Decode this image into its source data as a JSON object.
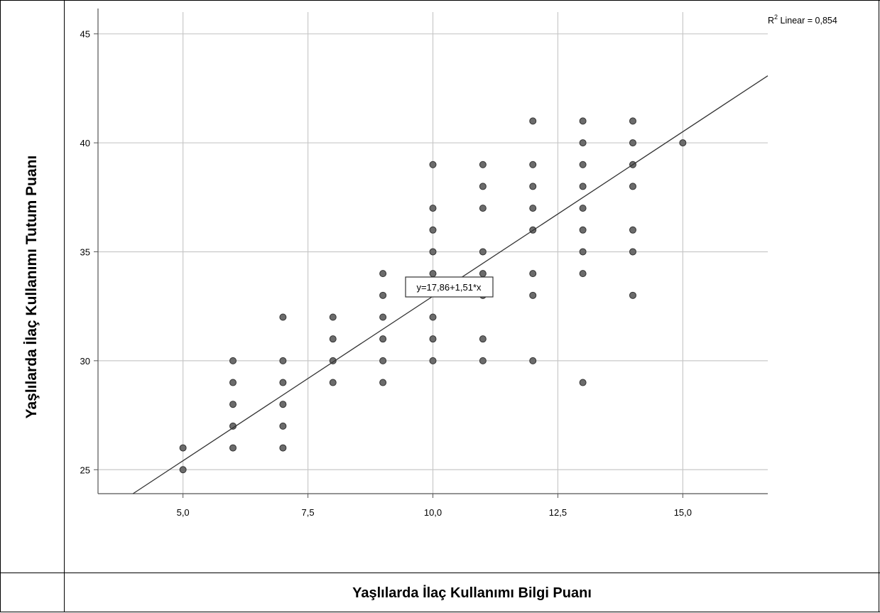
{
  "figure": {
    "y_axis_title": "Yaşlılarda İlaç Kullanımı Tutum Puanı",
    "x_axis_title": "Yaşlılarda İlaç Kullanımı Bilgi Puanı",
    "r2_prefix": "R",
    "r2_sup": "2",
    "r2_text": " Linear = 0,854",
    "equation": "y=17,86+1,51*x"
  },
  "chart_data": {
    "type": "scatter",
    "xlabel": "Yaşlılarda İlaç Kullanımı Bilgi Puanı",
    "ylabel": "Yaşlılarda İlaç Kullanımı Tutum Puanı",
    "xlim": [
      3.3,
      16.7
    ],
    "ylim": [
      23.9,
      46.0
    ],
    "xticks": [
      5.0,
      7.5,
      10.0,
      12.5,
      15.0
    ],
    "xtick_labels": [
      "5,0",
      "7,5",
      "10,0",
      "12,5",
      "15,0"
    ],
    "yticks": [
      25,
      30,
      35,
      40,
      45
    ],
    "ytick_labels": [
      "25",
      "30",
      "35",
      "40",
      "45"
    ],
    "grid": true,
    "point_color": "#6b6b6b",
    "points": [
      [
        5,
        25
      ],
      [
        5,
        26
      ],
      [
        6,
        26
      ],
      [
        6,
        27
      ],
      [
        6,
        28
      ],
      [
        6,
        29
      ],
      [
        6,
        30
      ],
      [
        7,
        26
      ],
      [
        7,
        27
      ],
      [
        7,
        28
      ],
      [
        7,
        29
      ],
      [
        7,
        30
      ],
      [
        7,
        32
      ],
      [
        8,
        29
      ],
      [
        8,
        30
      ],
      [
        8,
        31
      ],
      [
        8,
        32
      ],
      [
        9,
        29
      ],
      [
        9,
        30
      ],
      [
        9,
        31
      ],
      [
        9,
        32
      ],
      [
        9,
        33
      ],
      [
        9,
        34
      ],
      [
        10,
        30
      ],
      [
        10,
        31
      ],
      [
        10,
        32
      ],
      [
        10,
        34
      ],
      [
        10,
        35
      ],
      [
        10,
        36
      ],
      [
        10,
        37
      ],
      [
        10,
        39
      ],
      [
        11,
        30
      ],
      [
        11,
        31
      ],
      [
        11,
        33
      ],
      [
        11,
        34
      ],
      [
        11,
        35
      ],
      [
        11,
        37
      ],
      [
        11,
        38
      ],
      [
        11,
        39
      ],
      [
        12,
        30
      ],
      [
        12,
        33
      ],
      [
        12,
        34
      ],
      [
        12,
        36
      ],
      [
        12,
        37
      ],
      [
        12,
        38
      ],
      [
        12,
        39
      ],
      [
        12,
        41
      ],
      [
        13,
        29
      ],
      [
        13,
        34
      ],
      [
        13,
        35
      ],
      [
        13,
        36
      ],
      [
        13,
        37
      ],
      [
        13,
        38
      ],
      [
        13,
        39
      ],
      [
        13,
        40
      ],
      [
        13,
        41
      ],
      [
        14,
        33
      ],
      [
        14,
        35
      ],
      [
        14,
        36
      ],
      [
        14,
        38
      ],
      [
        14,
        39
      ],
      [
        14,
        40
      ],
      [
        14,
        41
      ],
      [
        15,
        40
      ]
    ],
    "fit_line": {
      "intercept": 17.86,
      "slope": 1.51,
      "label": "y=17,86+1,51*x",
      "label_x": 10.2,
      "label_y": 33.45
    },
    "annotation": "R2 Linear = 0,854"
  }
}
